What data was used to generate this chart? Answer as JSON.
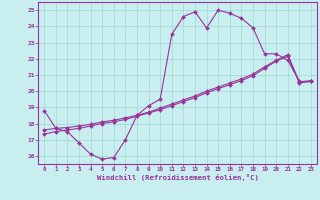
{
  "xlabel": "Windchill (Refroidissement éolien,°C)",
  "background_color": "#c8eef0",
  "grid_color": "#a0d8d0",
  "line_color": "#993399",
  "xlim": [
    -0.5,
    23.5
  ],
  "ylim": [
    15.5,
    25.5
  ],
  "yticks": [
    16,
    17,
    18,
    19,
    20,
    21,
    22,
    23,
    24,
    25
  ],
  "xticks": [
    0,
    1,
    2,
    3,
    4,
    5,
    6,
    7,
    8,
    9,
    10,
    11,
    12,
    13,
    14,
    15,
    16,
    17,
    18,
    19,
    20,
    21,
    22,
    23
  ],
  "curve1_x": [
    0,
    1,
    2,
    3,
    4,
    5,
    6,
    7,
    8,
    9,
    10,
    11,
    12,
    13,
    14,
    15,
    16,
    17,
    18,
    19,
    20,
    21,
    22,
    23
  ],
  "curve1_y": [
    18.8,
    17.7,
    17.5,
    16.8,
    16.1,
    15.8,
    15.9,
    17.0,
    18.5,
    19.1,
    19.5,
    23.5,
    24.6,
    24.9,
    23.9,
    25.0,
    24.8,
    24.5,
    23.9,
    22.3,
    22.3,
    21.9,
    20.6,
    20.6
  ],
  "curve2_x": [
    0,
    1,
    2,
    3,
    4,
    5,
    6,
    7,
    8,
    9,
    10,
    11,
    12,
    13,
    14,
    15,
    16,
    17,
    18,
    19,
    20,
    21,
    22,
    23
  ],
  "curve2_y": [
    17.6,
    17.7,
    17.75,
    17.85,
    17.95,
    18.1,
    18.2,
    18.35,
    18.5,
    18.7,
    18.95,
    19.2,
    19.45,
    19.7,
    20.0,
    20.25,
    20.5,
    20.75,
    21.05,
    21.5,
    21.9,
    22.25,
    20.55,
    20.65
  ],
  "curve3_x": [
    0,
    1,
    2,
    3,
    4,
    5,
    6,
    7,
    8,
    9,
    10,
    11,
    12,
    13,
    14,
    15,
    16,
    17,
    18,
    19,
    20,
    21,
    22,
    23
  ],
  "curve3_y": [
    17.35,
    17.5,
    17.6,
    17.7,
    17.85,
    18.0,
    18.1,
    18.25,
    18.45,
    18.65,
    18.85,
    19.1,
    19.35,
    19.6,
    19.9,
    20.15,
    20.4,
    20.65,
    20.95,
    21.4,
    21.85,
    22.15,
    20.5,
    20.6
  ]
}
